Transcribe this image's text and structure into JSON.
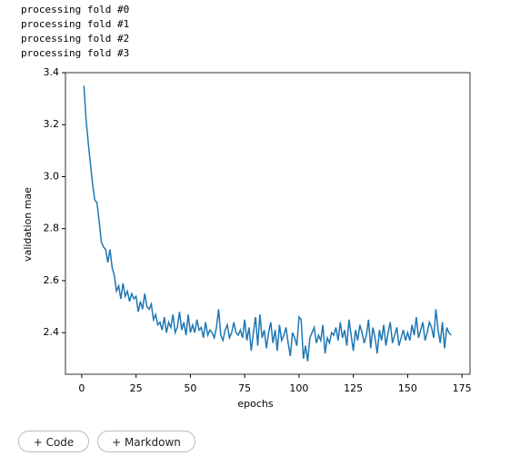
{
  "output_lines": [
    "processing fold #0",
    "processing fold #1",
    "processing fold #2",
    "processing fold #3"
  ],
  "chart_data": {
    "type": "line",
    "xlabel": "epochs",
    "ylabel": "validation mae",
    "color": "#1f77b4",
    "x": [
      1,
      2,
      3,
      4,
      5,
      6,
      7,
      8,
      9,
      10,
      11,
      12,
      13,
      14,
      15,
      16,
      17,
      18,
      19,
      20,
      21,
      22,
      23,
      24,
      25,
      26,
      27,
      28,
      29,
      30,
      31,
      32,
      33,
      34,
      35,
      36,
      37,
      38,
      39,
      40,
      41,
      42,
      43,
      44,
      45,
      46,
      47,
      48,
      49,
      50,
      51,
      52,
      53,
      54,
      55,
      56,
      57,
      58,
      59,
      60,
      61,
      62,
      63,
      64,
      65,
      66,
      67,
      68,
      69,
      70,
      71,
      72,
      73,
      74,
      75,
      76,
      77,
      78,
      79,
      80,
      81,
      82,
      83,
      84,
      85,
      86,
      87,
      88,
      89,
      90,
      91,
      92,
      93,
      94,
      95,
      96,
      97,
      98,
      99,
      100,
      101,
      102,
      103,
      104,
      105,
      106,
      107,
      108,
      109,
      110,
      111,
      112,
      113,
      114,
      115,
      116,
      117,
      118,
      119,
      120,
      121,
      122,
      123,
      124,
      125,
      126,
      127,
      128,
      129,
      130,
      131,
      132,
      133,
      134,
      135,
      136,
      137,
      138,
      139,
      140,
      141,
      142,
      143,
      144,
      145,
      146,
      147,
      148,
      149,
      150,
      151,
      152,
      153,
      154,
      155,
      156,
      157,
      158,
      159,
      160,
      161,
      162,
      163,
      164,
      165,
      166,
      167,
      168,
      169,
      170
    ],
    "values": [
      3.35,
      3.22,
      3.13,
      3.05,
      2.97,
      2.91,
      2.9,
      2.83,
      2.75,
      2.73,
      2.72,
      2.67,
      2.72,
      2.65,
      2.62,
      2.56,
      2.58,
      2.53,
      2.59,
      2.54,
      2.56,
      2.52,
      2.55,
      2.53,
      2.54,
      2.48,
      2.52,
      2.49,
      2.55,
      2.5,
      2.49,
      2.51,
      2.45,
      2.47,
      2.43,
      2.44,
      2.41,
      2.46,
      2.4,
      2.44,
      2.42,
      2.47,
      2.4,
      2.42,
      2.48,
      2.41,
      2.44,
      2.39,
      2.47,
      2.4,
      2.43,
      2.4,
      2.45,
      2.41,
      2.42,
      2.38,
      2.44,
      2.39,
      2.41,
      2.4,
      2.38,
      2.42,
      2.49,
      2.39,
      2.37,
      2.41,
      2.43,
      2.38,
      2.4,
      2.44,
      2.4,
      2.39,
      2.41,
      2.38,
      2.45,
      2.37,
      2.42,
      2.33,
      2.4,
      2.46,
      2.35,
      2.47,
      2.38,
      2.41,
      2.34,
      2.4,
      2.44,
      2.36,
      2.41,
      2.33,
      2.43,
      2.37,
      2.39,
      2.42,
      2.36,
      2.31,
      2.4,
      2.38,
      2.35,
      2.46,
      2.45,
      2.3,
      2.35,
      2.29,
      2.38,
      2.4,
      2.42,
      2.36,
      2.39,
      2.37,
      2.43,
      2.32,
      2.38,
      2.36,
      2.4,
      2.39,
      2.42,
      2.37,
      2.44,
      2.38,
      2.41,
      2.35,
      2.45,
      2.39,
      2.33,
      2.41,
      2.37,
      2.43,
      2.4,
      2.36,
      2.39,
      2.45,
      2.34,
      2.42,
      2.38,
      2.32,
      2.41,
      2.37,
      2.43,
      2.35,
      2.4,
      2.44,
      2.36,
      2.39,
      2.42,
      2.35,
      2.38,
      2.41,
      2.37,
      2.4,
      2.37,
      2.43,
      2.39,
      2.46,
      2.38,
      2.41,
      2.44,
      2.37,
      2.4,
      2.44,
      2.42,
      2.38,
      2.49,
      2.41,
      2.36,
      2.44,
      2.34,
      2.42,
      2.4,
      2.39
    ],
    "xlim": [
      -7.5,
      178.7
    ],
    "ylim": [
      2.24,
      3.4
    ],
    "xticks": [
      0,
      25,
      50,
      75,
      100,
      125,
      150,
      175
    ],
    "yticks": [
      2.4,
      2.6,
      2.8,
      {
        "value": 3,
        "label": "3.0"
      },
      3.2,
      3.4
    ]
  },
  "buttons": [
    "+ Code",
    "+ Markdown"
  ]
}
